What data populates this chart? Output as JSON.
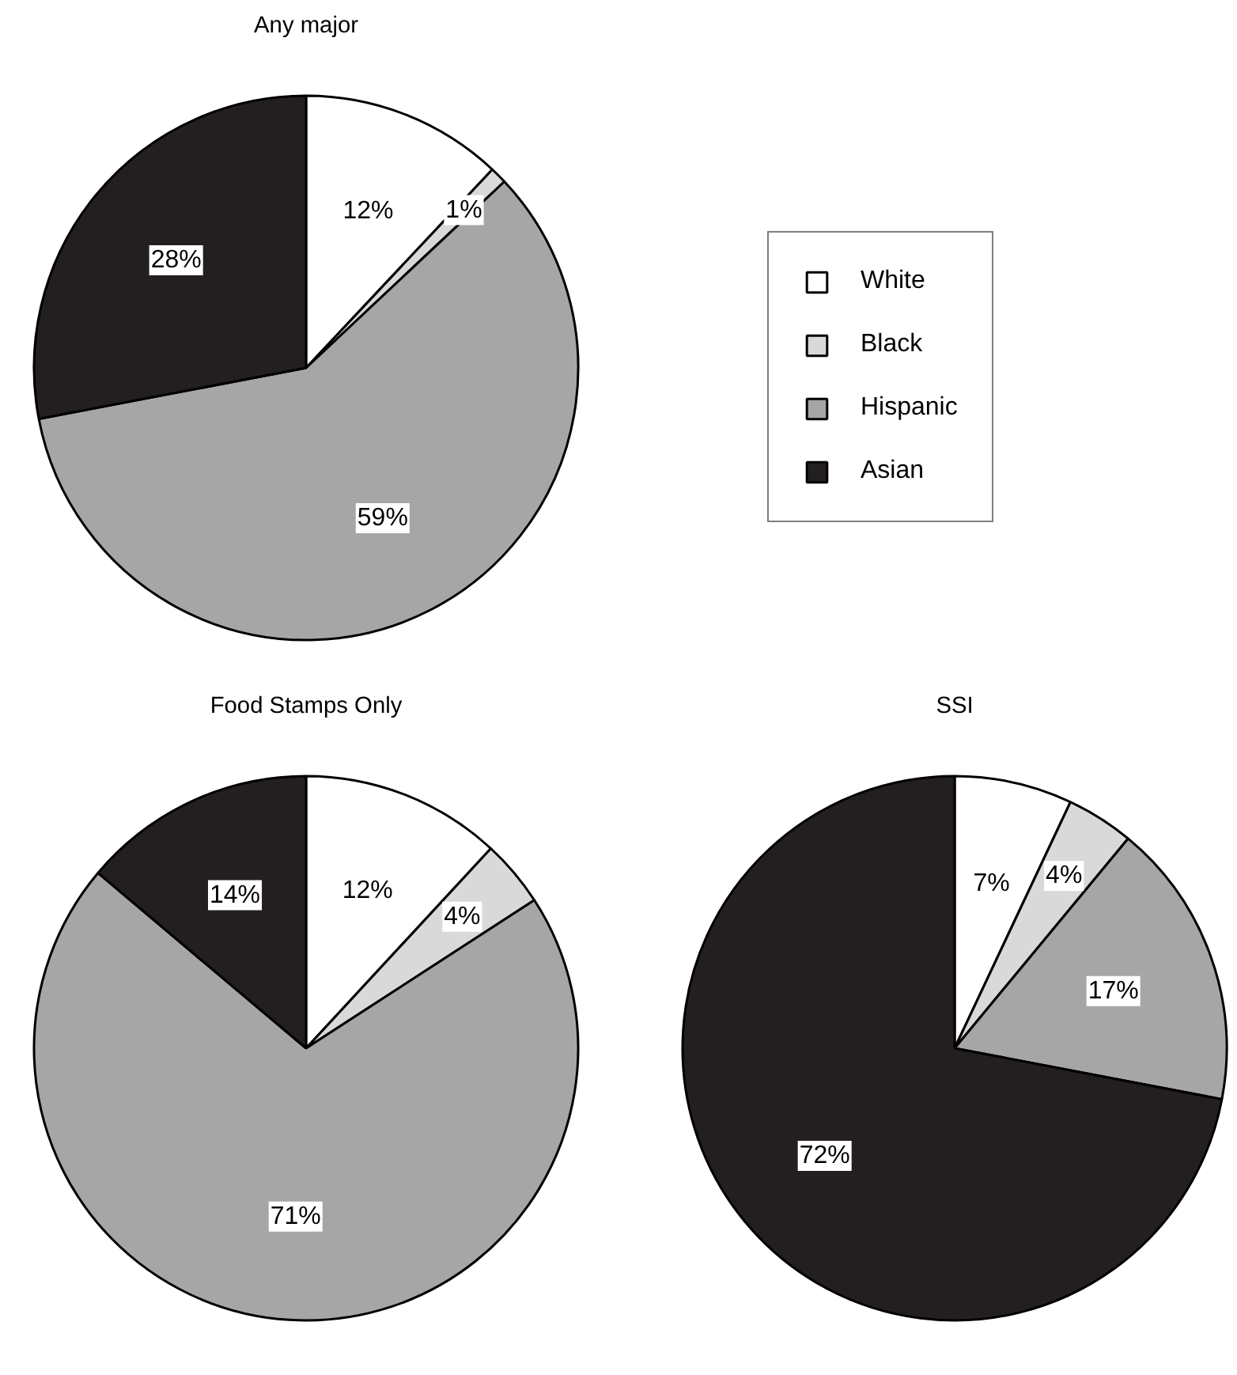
{
  "chart_data": [
    {
      "type": "pie",
      "title": "Any major",
      "categories": [
        "White",
        "Black",
        "Hispanic",
        "Asian"
      ],
      "values": [
        12,
        1,
        59,
        28
      ],
      "colors": [
        "#ffffff",
        "#d9d9d9",
        "#a6a6a6",
        "#231f20"
      ],
      "value_labels": [
        "12%",
        "1%",
        "59%",
        "28%"
      ],
      "legend": "right"
    },
    {
      "type": "pie",
      "title": "Food Stamps Only",
      "categories": [
        null,
        null,
        null,
        null
      ],
      "values": [
        12,
        4,
        71,
        14
      ],
      "colors": [
        "#ffffff",
        "#d9d9d9",
        "#a6a6a6",
        "#231f20"
      ],
      "value_labels": [
        "12%",
        "4%",
        "71%",
        "14%"
      ]
    },
    {
      "type": "pie",
      "title": "SSI",
      "categories": [
        null,
        null,
        null,
        null
      ],
      "values": [
        7,
        4,
        17,
        72
      ],
      "colors": [
        "#ffffff",
        "#d9d9d9",
        "#a6a6a6",
        "#231f20"
      ],
      "value_labels": [
        "7%",
        "4%",
        "17%",
        "72%"
      ]
    }
  ]
}
